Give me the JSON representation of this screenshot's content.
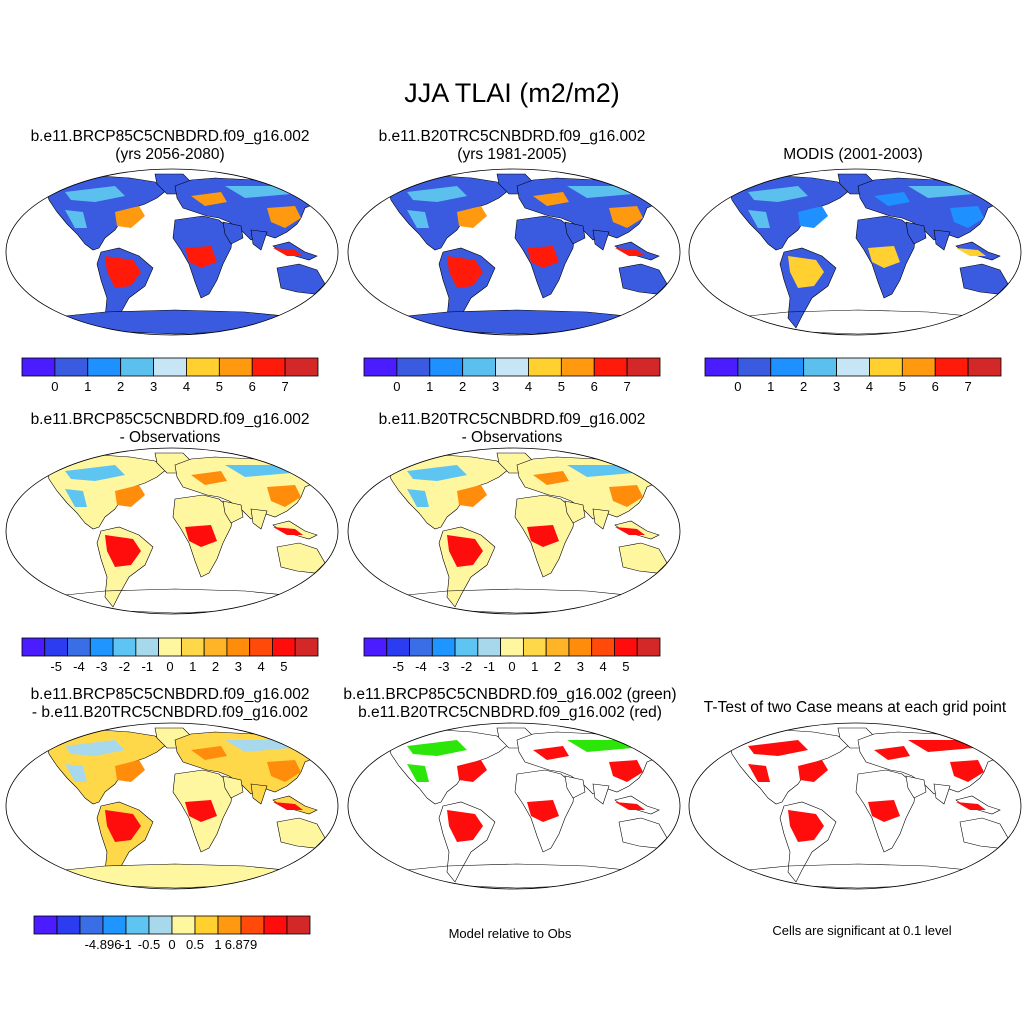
{
  "figure": {
    "title": "JJA TLAI (m2/m2)",
    "notes": {
      "model_vs_obs": "Model relative to Obs",
      "ttest": "Cells are significant at 0.1 level"
    }
  },
  "panels": [
    {
      "id": "p1",
      "title1": "b.e11.BRCP85C5CNBDRD.f09_g16.002",
      "title2": "(yrs 2056-2080)",
      "kind": "abs"
    },
    {
      "id": "p2",
      "title1": "b.e11.B20TRC5CNBDRD.f09_g16.002",
      "title2": "(yrs 1981-2005)",
      "kind": "abs"
    },
    {
      "id": "p3",
      "title1": "MODIS (2001-2003)",
      "title2": "",
      "kind": "abs-obs"
    },
    {
      "id": "p4",
      "title1": "b.e11.BRCP85C5CNBDRD.f09_g16.002",
      "title2": "- Observations",
      "kind": "diff"
    },
    {
      "id": "p5",
      "title1": "b.e11.B20TRC5CNBDRD.f09_g16.002",
      "title2": "- Observations",
      "kind": "diff"
    },
    {
      "id": "p7",
      "title1": "b.e11.BRCP85C5CNBDRD.f09_g16.002",
      "title2": "- b.e11.B20TRC5CNBDRD.f09_g16.002",
      "kind": "casediff"
    },
    {
      "id": "p8",
      "title1": "b.e11.BRCP85C5CNBDRD.f09_g16.002 (green)",
      "title2": "b.e11.B20TRC5CNBDRD.f09_g16.002 (red)",
      "kind": "rel"
    },
    {
      "id": "p9",
      "title1": "T-Test of two Case means at each grid point",
      "title2": "",
      "kind": "ttest"
    }
  ],
  "chart_data": [
    {
      "type": "heatmap",
      "name": "absolute",
      "colors": [
        "#4a1cff",
        "#3a5ae0",
        "#1f90ff",
        "#5bc0ee",
        "#c6e6f5",
        "#ffd030",
        "#ff9a10",
        "#ff1a0a",
        "#d42828"
      ],
      "tick_labels": [
        "0",
        "1",
        "2",
        "3",
        "4",
        "5",
        "6",
        "7"
      ]
    },
    {
      "type": "heatmap",
      "name": "difference",
      "colors": [
        "#4a1cff",
        "#2c3cf0",
        "#3a6ee6",
        "#1f96ff",
        "#5ec4f2",
        "#a8d8ec",
        "#fff6a0",
        "#ffd84a",
        "#ffb428",
        "#ff8c0a",
        "#ff4a0a",
        "#ff0c0c",
        "#d42828"
      ],
      "tick_labels": [
        "-5",
        "-4",
        "-3",
        "-2",
        "-1",
        "0",
        "1",
        "2",
        "3",
        "4",
        "5"
      ]
    },
    {
      "type": "heatmap",
      "name": "case_difference",
      "colors": [
        "#4a1cff",
        "#2c3cf0",
        "#3a6ee6",
        "#1f96ff",
        "#5ec4f2",
        "#a8d8ec",
        "#fff6a0",
        "#ffd030",
        "#ff9a10",
        "#ff4a0a",
        "#ff0c0c",
        "#d42828"
      ],
      "tick_labels": [
        "-4.896",
        "-1",
        "-0.5",
        "0",
        "0.5",
        "1",
        "6.879"
      ]
    }
  ]
}
